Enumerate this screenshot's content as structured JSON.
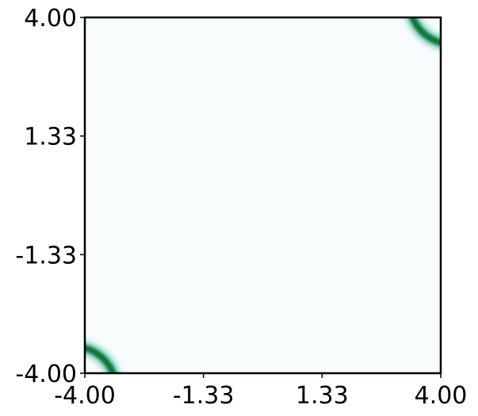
{
  "chart_data": {
    "type": "heatmap",
    "title": "",
    "xlabel": "",
    "ylabel": "",
    "xlim": [
      -4.0,
      4.0
    ],
    "ylim": [
      -4.0,
      4.0
    ],
    "x_ticks": [
      "-4.00",
      "-1.33",
      "1.33",
      "4.00"
    ],
    "y_ticks": [
      "-4.00",
      "-1.33",
      "1.33",
      "4.00"
    ],
    "x_tick_values": [
      -4.0,
      -1.3333,
      1.3333,
      4.0
    ],
    "y_tick_values": [
      -4.0,
      -1.3333,
      1.3333,
      4.0
    ],
    "colormap": "BuGn",
    "colors": {
      "background": "#f7fcfd",
      "low": "#e5f5f9",
      "mid": "#66c2a4",
      "high": "#006d2c"
    },
    "grid": false,
    "density_regions": [
      {
        "center_x": 3.3,
        "center_y": 3.4,
        "arc_center_x": 4.25,
        "arc_center_y": 4.35,
        "radius": 0.95,
        "arc_start_deg": 160,
        "arc_end_deg": 265,
        "peak": 1.0
      },
      {
        "center_x": -3.3,
        "center_y": -3.4,
        "arc_center_x": -4.25,
        "arc_center_y": -4.35,
        "radius": 0.95,
        "arc_start_deg": -20,
        "arc_end_deg": 85,
        "peak": 1.0
      }
    ]
  }
}
